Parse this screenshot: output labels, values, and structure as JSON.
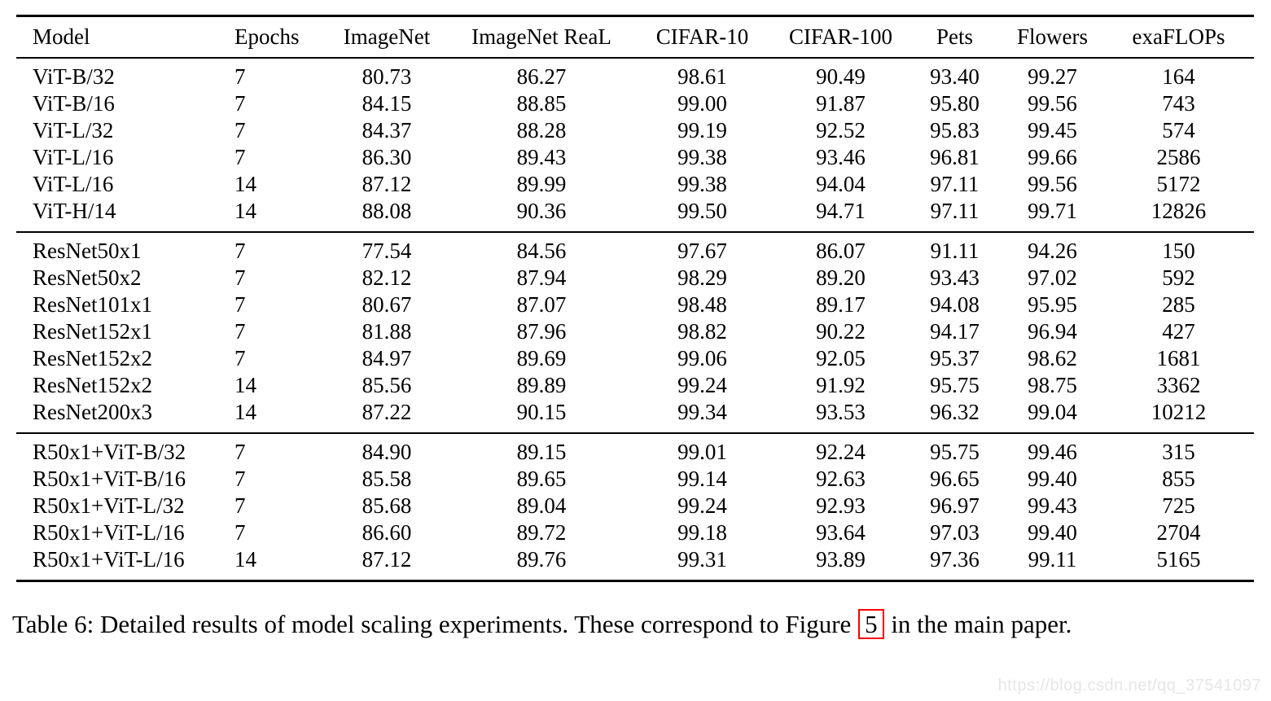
{
  "table": {
    "columns": [
      "Model",
      "Epochs",
      "ImageNet",
      "ImageNet ReaL",
      "CIFAR-10",
      "CIFAR-100",
      "Pets",
      "Flowers",
      "exaFLOPs"
    ],
    "sections": [
      {
        "name": "vit-models",
        "rows": [
          [
            "ViT-B/32",
            "7",
            "80.73",
            "86.27",
            "98.61",
            "90.49",
            "93.40",
            "99.27",
            "164"
          ],
          [
            "ViT-B/16",
            "7",
            "84.15",
            "88.85",
            "99.00",
            "91.87",
            "95.80",
            "99.56",
            "743"
          ],
          [
            "ViT-L/32",
            "7",
            "84.37",
            "88.28",
            "99.19",
            "92.52",
            "95.83",
            "99.45",
            "574"
          ],
          [
            "ViT-L/16",
            "7",
            "86.30",
            "89.43",
            "99.38",
            "93.46",
            "96.81",
            "99.66",
            "2586"
          ],
          [
            "ViT-L/16",
            "14",
            "87.12",
            "89.99",
            "99.38",
            "94.04",
            "97.11",
            "99.56",
            "5172"
          ],
          [
            "ViT-H/14",
            "14",
            "88.08",
            "90.36",
            "99.50",
            "94.71",
            "97.11",
            "99.71",
            "12826"
          ]
        ]
      },
      {
        "name": "resnet-models",
        "rows": [
          [
            "ResNet50x1",
            "7",
            "77.54",
            "84.56",
            "97.67",
            "86.07",
            "91.11",
            "94.26",
            "150"
          ],
          [
            "ResNet50x2",
            "7",
            "82.12",
            "87.94",
            "98.29",
            "89.20",
            "93.43",
            "97.02",
            "592"
          ],
          [
            "ResNet101x1",
            "7",
            "80.67",
            "87.07",
            "98.48",
            "89.17",
            "94.08",
            "95.95",
            "285"
          ],
          [
            "ResNet152x1",
            "7",
            "81.88",
            "87.96",
            "98.82",
            "90.22",
            "94.17",
            "96.94",
            "427"
          ],
          [
            "ResNet152x2",
            "7",
            "84.97",
            "89.69",
            "99.06",
            "92.05",
            "95.37",
            "98.62",
            "1681"
          ],
          [
            "ResNet152x2",
            "14",
            "85.56",
            "89.89",
            "99.24",
            "91.92",
            "95.75",
            "98.75",
            "3362"
          ],
          [
            "ResNet200x3",
            "14",
            "87.22",
            "90.15",
            "99.34",
            "93.53",
            "96.32",
            "99.04",
            "10212"
          ]
        ]
      },
      {
        "name": "hybrid-models",
        "rows": [
          [
            "R50x1+ViT-B/32",
            "7",
            "84.90",
            "89.15",
            "99.01",
            "92.24",
            "95.75",
            "99.46",
            "315"
          ],
          [
            "R50x1+ViT-B/16",
            "7",
            "85.58",
            "89.65",
            "99.14",
            "92.63",
            "96.65",
            "99.40",
            "855"
          ],
          [
            "R50x1+ViT-L/32",
            "7",
            "85.68",
            "89.04",
            "99.24",
            "92.93",
            "96.97",
            "99.43",
            "725"
          ],
          [
            "R50x1+ViT-L/16",
            "7",
            "86.60",
            "89.72",
            "99.18",
            "93.64",
            "97.03",
            "99.40",
            "2704"
          ],
          [
            "R50x1+ViT-L/16",
            "14",
            "87.12",
            "89.76",
            "99.31",
            "93.89",
            "97.36",
            "99.11",
            "5165"
          ]
        ]
      }
    ]
  },
  "caption": {
    "text_before": "Table 6: Detailed results of model scaling experiments. These correspond to Figure",
    "figure_ref": "5",
    "text_after": "in the main paper.",
    "link_box_color": "#ff0000"
  },
  "watermark": {
    "text": "https://blog.csdn.net/qq_37541097",
    "color": "#e6e6e6"
  }
}
